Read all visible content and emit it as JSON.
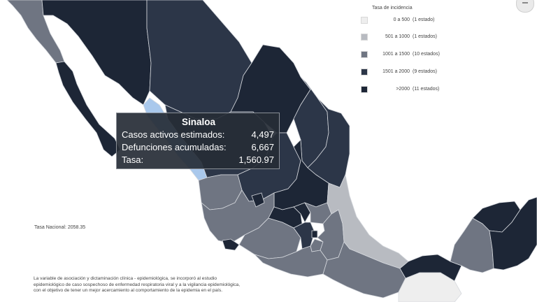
{
  "colors": {
    "background": "#ffffff",
    "very_high": "#1d2636",
    "high": "#2c3648",
    "medium_high": "#6f7582",
    "medium": "#b8bbc1",
    "low": "#eeeeee",
    "selected": "#a9c8ec",
    "border": "#d6d9de"
  },
  "legend": {
    "title": "Tasa de incidencia",
    "items": [
      {
        "range": "0 a 500",
        "count": "(1 estado)",
        "color": "#eeeeee"
      },
      {
        "range": "501 a 1000",
        "count": "(1 estados)",
        "color": "#b8bbc1"
      },
      {
        "range": "1001 a 1500",
        "count": "(10 estados)",
        "color": "#6f7582"
      },
      {
        "range": "1501 a 2000",
        "count": "(9 estados)",
        "color": "#2c3648"
      },
      {
        "range": ">2000",
        "count": "(11 estados)",
        "color": "#1d2636"
      }
    ]
  },
  "tooltip": {
    "title": "Sinaloa",
    "rows": [
      {
        "label": "Casos activos estimados:",
        "value": "4,497"
      },
      {
        "label": "Defunciones acumuladas:",
        "value": "6,667"
      },
      {
        "label": "Tasa:",
        "value": "1,560.97"
      }
    ]
  },
  "tasa_nacional": "Tasa Nacional: 2058.35",
  "footnote": [
    "La variable de asociación y dictaminación clínica - epidemiológica, se incorporó al estudio",
    "epidemiológico de caso sospechoso de enfermedad respiratoria viral y a la vigilancia epidemiológica,",
    "con el objetivo de tener un mejor acercamiento al comportamiento de la epidemia en el país."
  ],
  "selected_state": "Sinaloa"
}
